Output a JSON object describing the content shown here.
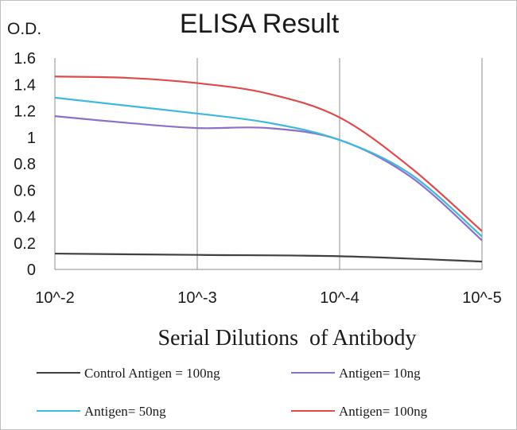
{
  "chart_data": {
    "type": "line",
    "title": "ELISA Result",
    "ylabel": "O.D.",
    "xlabel": "Serial Dilutions  of Antibody",
    "x_categories": [
      "10^-2",
      "10^-3",
      "10^-4",
      "10^-5"
    ],
    "y_ticks": [
      "0",
      "0.2",
      "0.4",
      "0.6",
      "0.8",
      "1",
      "1.2",
      "1.4",
      "1.6"
    ],
    "ylim": [
      0,
      1.6
    ],
    "grid": "vertical lines at x categories",
    "legend_position": "bottom",
    "series": [
      {
        "name": "Control Antigen = 100ng",
        "color": "#404040",
        "points": [
          [
            0,
            0.12
          ],
          [
            1,
            0.11
          ],
          [
            2,
            0.1
          ],
          [
            3,
            0.06
          ]
        ]
      },
      {
        "name": "Antigen= 10ng",
        "color": "#8e6fc8",
        "points": [
          [
            0,
            1.16
          ],
          [
            0.5,
            1.11
          ],
          [
            1,
            1.07
          ],
          [
            1.5,
            1.07
          ],
          [
            2,
            0.98
          ],
          [
            2.5,
            0.7
          ],
          [
            3,
            0.22
          ]
        ]
      },
      {
        "name": "Antigen= 50ng",
        "color": "#3fb8e0",
        "points": [
          [
            0,
            1.3
          ],
          [
            0.5,
            1.24
          ],
          [
            1,
            1.18
          ],
          [
            1.5,
            1.11
          ],
          [
            2,
            0.98
          ],
          [
            2.5,
            0.72
          ],
          [
            3,
            0.25
          ]
        ]
      },
      {
        "name": "Antigen= 100ng",
        "color": "#e04a4a",
        "points": [
          [
            0,
            1.46
          ],
          [
            0.5,
            1.45
          ],
          [
            1,
            1.41
          ],
          [
            1.5,
            1.33
          ],
          [
            2,
            1.15
          ],
          [
            2.5,
            0.77
          ],
          [
            3,
            0.29
          ]
        ]
      }
    ]
  }
}
